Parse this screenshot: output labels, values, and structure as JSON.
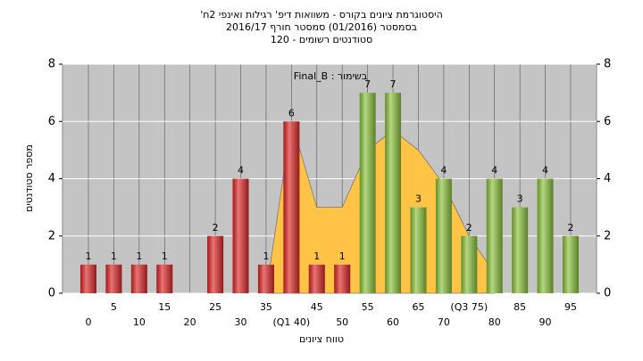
{
  "chart_data": {
    "type": "bar",
    "title": [
      "'היסטוגרמת ציונים בקורס - משוואות דיפ' רגילות ואינפי 2ח",
      "בסמסטר  (01/2016)  סמסטר חורף 2016/17",
      "סטודנטים רשומים - 120"
    ],
    "annotation": "Final_B : בשימור",
    "x_label": "טווח ציונים",
    "y_label": "מספר סטודנטים",
    "categories": [
      0,
      5,
      10,
      15,
      20,
      25,
      30,
      35,
      "(Q1 40)",
      45,
      50,
      55,
      60,
      65,
      70,
      "(Q3 75)",
      80,
      85,
      90,
      95
    ],
    "values": [
      1,
      1,
      1,
      1,
      0,
      2,
      4,
      1,
      6,
      1,
      1,
      7,
      7,
      3,
      4,
      2,
      4,
      3,
      4,
      2
    ],
    "colors": [
      "#e02828",
      "#e02828",
      "#e02828",
      "#e02828",
      "#e02828",
      "#e02828",
      "#e02828",
      "#e02828",
      "#e02828",
      "#e02828",
      "#e02828",
      "#8cc43c",
      "#8cc43c",
      "#8cc43c",
      "#8cc43c",
      "#8cc43c",
      "#8cc43c",
      "#8cc43c",
      "#8cc43c",
      "#8cc43c"
    ],
    "area_values": [
      null,
      null,
      null,
      null,
      null,
      null,
      null,
      0,
      6,
      3,
      3,
      5,
      5.7,
      5,
      3.8,
      2,
      0.7,
      null,
      null,
      null
    ],
    "area_color": "#ffc445",
    "ylim": [
      0,
      8
    ],
    "yticks": [
      0,
      2,
      4,
      6,
      8
    ],
    "y2lim": [
      0,
      8
    ],
    "y2ticks": [
      0,
      2,
      4,
      6,
      8
    ],
    "grid": true
  }
}
